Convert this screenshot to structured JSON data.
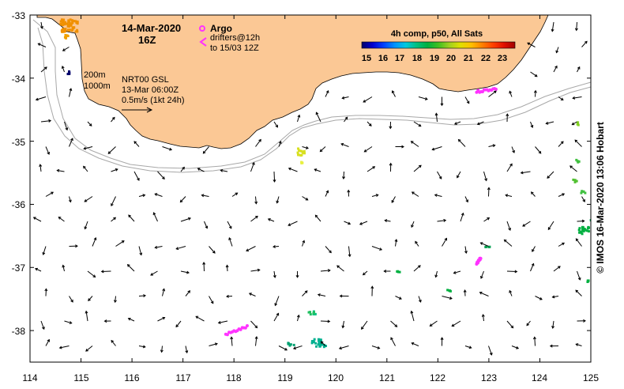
{
  "title": {
    "date": "14-Mar-2020",
    "hour": "16Z"
  },
  "argo": {
    "label": "Argo",
    "drifter_label": "drifters@12h",
    "drifter_range": "to 15/03 12Z",
    "argo_color": "#ff33ff",
    "drifter_color": "#ff33ff"
  },
  "isobaths": [
    "200m",
    "1000m"
  ],
  "currents": {
    "product": "NRT00 GSL",
    "time": "13-Mar 06:00Z",
    "scale_label": "0.5m/s (1kt 24h)"
  },
  "colorbar": {
    "title": "4h comp, p50, All Sats",
    "ticks": [
      "15",
      "16",
      "17",
      "18",
      "19",
      "20",
      "21",
      "22",
      "23"
    ],
    "colors": [
      "#00006a",
      "#0000d0",
      "#0040ff",
      "#0090ff",
      "#00c8e0",
      "#00c080",
      "#00b040",
      "#40c020",
      "#a0d020",
      "#e0e000",
      "#ffc000",
      "#ff8000",
      "#ff4000",
      "#e01000",
      "#a00000"
    ]
  },
  "credit": "© IMOS 16-Mar-2020 13:06 Hobart",
  "axes": {
    "x_ticks": [
      "114",
      "115",
      "116",
      "117",
      "118",
      "119",
      "120",
      "121",
      "122",
      "123",
      "124",
      "125"
    ],
    "y_ticks": [
      "-33",
      "-34",
      "-35",
      "-36",
      "-37",
      "-38"
    ],
    "lon_range": [
      114,
      125
    ],
    "lat_range": [
      -38.5,
      -33
    ]
  },
  "colors": {
    "land": "#fbc895",
    "isobath": "#a8a8a8",
    "frame": "#000000"
  },
  "sst_patches": [
    {
      "lon": 114.75,
      "lat": -33.15,
      "w": 0.35,
      "h": 0.2,
      "color": "#f09000"
    },
    {
      "lon": 114.7,
      "lat": -33.35,
      "w": 0.08,
      "h": 0.1,
      "color": "#f0a000"
    },
    {
      "lon": 114.75,
      "lat": -33.9,
      "w": 0.06,
      "h": 0.06,
      "color": "#00006a"
    },
    {
      "lon": 119.3,
      "lat": -35.15,
      "w": 0.15,
      "h": 0.12,
      "color": "#d8e020"
    },
    {
      "lon": 119.3,
      "lat": -35.3,
      "w": 0.07,
      "h": 0.06,
      "color": "#e8f040"
    },
    {
      "lon": 124.7,
      "lat": -35.3,
      "w": 0.1,
      "h": 0.05,
      "color": "#40c040"
    },
    {
      "lon": 124.67,
      "lat": -35.6,
      "w": 0.08,
      "h": 0.06,
      "color": "#50c030"
    },
    {
      "lon": 124.82,
      "lat": -35.8,
      "w": 0.1,
      "h": 0.06,
      "color": "#40c040"
    },
    {
      "lon": 124.85,
      "lat": -36.4,
      "w": 0.22,
      "h": 0.12,
      "color": "#00b040"
    },
    {
      "lon": 125.0,
      "lat": -36.25,
      "w": 0.05,
      "h": 0.06,
      "color": "#00a050"
    },
    {
      "lon": 124.73,
      "lat": -34.7,
      "w": 0.04,
      "h": 0.05,
      "color": "#80d020"
    },
    {
      "lon": 122.95,
      "lat": -36.65,
      "w": 0.1,
      "h": 0.04,
      "color": "#00a050"
    },
    {
      "lon": 121.2,
      "lat": -37.05,
      "w": 0.06,
      "h": 0.04,
      "color": "#00b040"
    },
    {
      "lon": 122.2,
      "lat": -37.35,
      "w": 0.08,
      "h": 0.03,
      "color": "#00b040"
    },
    {
      "lon": 119.55,
      "lat": -37.7,
      "w": 0.1,
      "h": 0.05,
      "color": "#00c080"
    },
    {
      "lon": 119.5,
      "lat": -37.7,
      "w": 0.12,
      "h": 0.05,
      "color": "#20c060"
    },
    {
      "lon": 119.65,
      "lat": -38.18,
      "w": 0.28,
      "h": 0.12,
      "color": "#00b090"
    },
    {
      "lon": 119.1,
      "lat": -38.2,
      "w": 0.14,
      "h": 0.06,
      "color": "#00a070"
    },
    {
      "lon": 124.92,
      "lat": -37.2,
      "w": 0.04,
      "h": 0.04,
      "color": "#00b040"
    }
  ],
  "drifters": [
    {
      "lon": 118.05,
      "lat": -38.0,
      "w": 0.42,
      "h": 0.12
    },
    {
      "lon": 122.8,
      "lat": -36.9,
      "w": 0.08,
      "h": 0.1
    },
    {
      "lon": 122.95,
      "lat": -34.19,
      "w": 0.38,
      "h": 0.05
    }
  ]
}
